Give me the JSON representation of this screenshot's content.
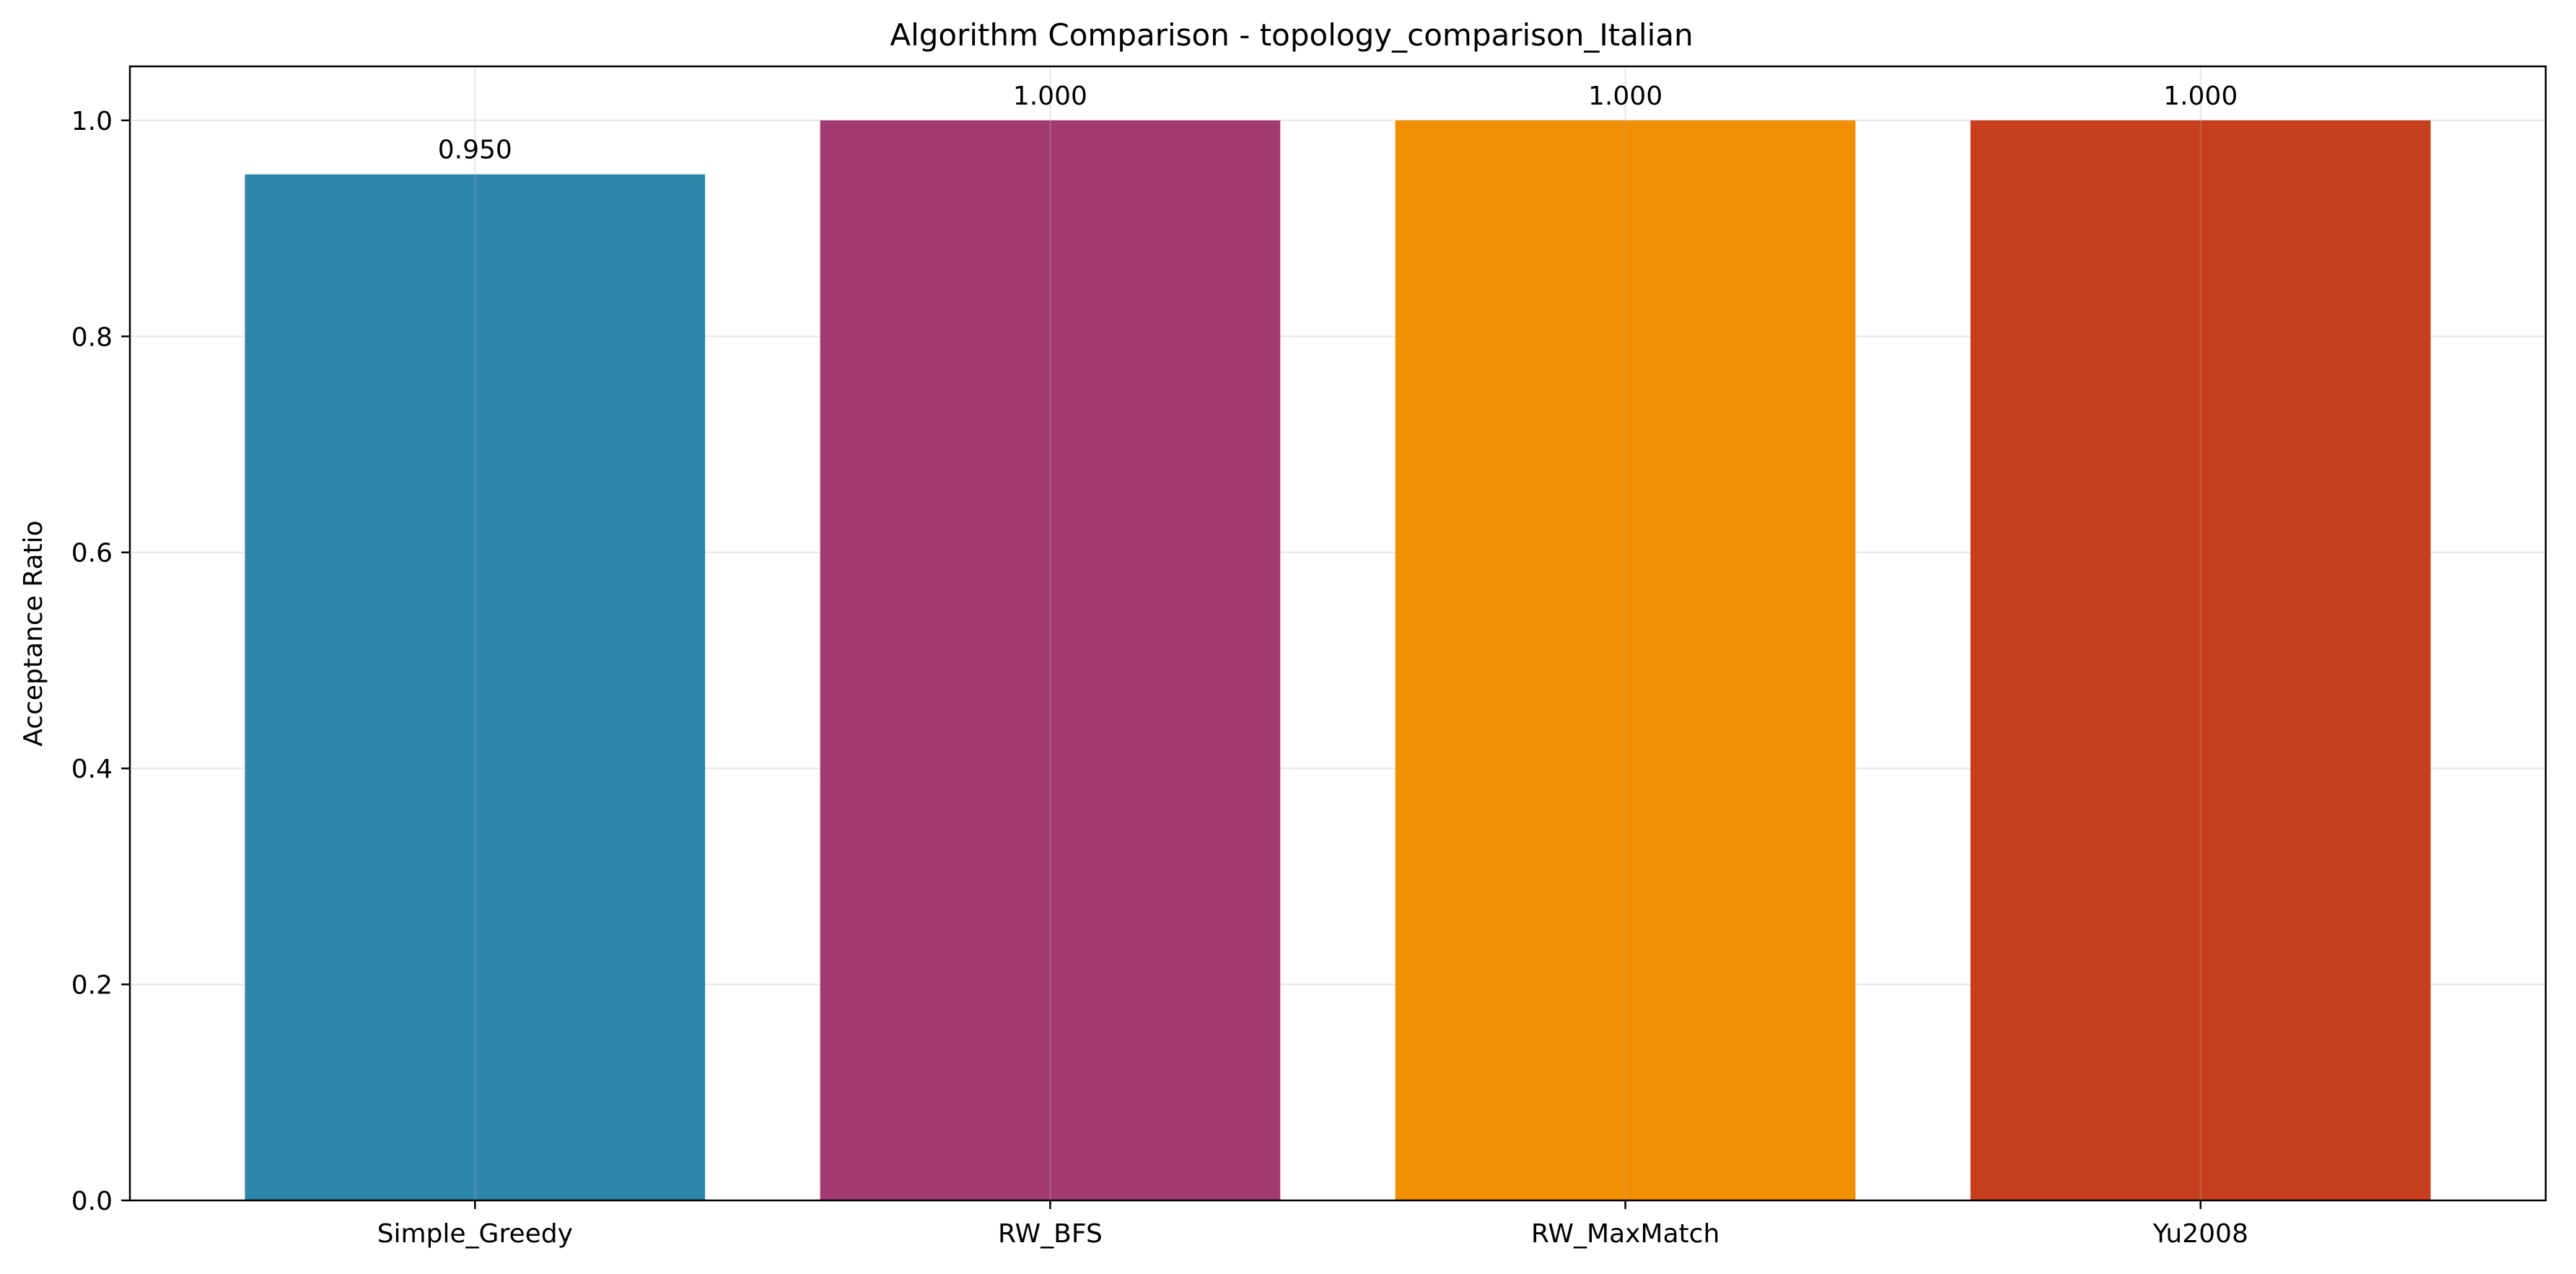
{
  "chart_data": {
    "type": "bar",
    "title": "Algorithm Comparison - topology_comparison_Italian",
    "xlabel": "",
    "ylabel": "Acceptance Ratio",
    "categories": [
      "Simple_Greedy",
      "RW_BFS",
      "RW_MaxMatch",
      "Yu2008"
    ],
    "values": [
      0.95,
      1.0,
      1.0,
      1.0
    ],
    "data_labels": [
      "0.950",
      "1.000",
      "1.000",
      "1.000"
    ],
    "colors": [
      "#2e86ab",
      "#a23b72",
      "#f18f01",
      "#c73e1d"
    ],
    "ylim": [
      0,
      1.05
    ],
    "yticks": [
      0.0,
      0.2,
      0.4,
      0.6,
      0.8,
      1.0
    ],
    "ytick_labels": [
      "0.0",
      "0.2",
      "0.4",
      "0.6",
      "0.8",
      "1.0"
    ],
    "grid": true,
    "legend": "none"
  }
}
